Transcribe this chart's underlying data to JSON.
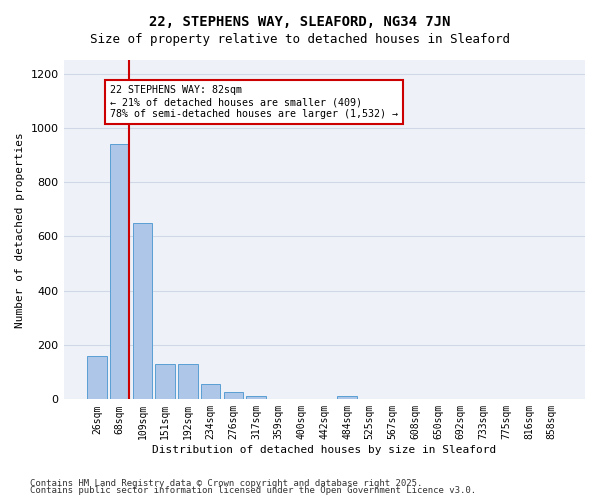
{
  "title_line1": "22, STEPHENS WAY, SLEAFORD, NG34 7JN",
  "title_line2": "Size of property relative to detached houses in Sleaford",
  "xlabel": "Distribution of detached houses by size in Sleaford",
  "ylabel": "Number of detached properties",
  "bar_labels": [
    "26sqm",
    "68sqm",
    "109sqm",
    "151sqm",
    "192sqm",
    "234sqm",
    "276sqm",
    "317sqm",
    "359sqm",
    "400sqm",
    "442sqm",
    "484sqm",
    "525sqm",
    "567sqm",
    "608sqm",
    "650sqm",
    "692sqm",
    "733sqm",
    "775sqm",
    "816sqm",
    "858sqm"
  ],
  "bar_values": [
    160,
    940,
    650,
    130,
    130,
    55,
    28,
    12,
    0,
    0,
    0,
    13,
    0,
    0,
    0,
    0,
    0,
    0,
    0,
    0,
    0
  ],
  "bar_color": "#aec6e8",
  "bar_edge_color": "#5a9fd4",
  "grid_color": "#d0d8e8",
  "background_color": "#eef2f8",
  "vline_x_offset": 1.42,
  "vline_color": "#cc0000",
  "annotation_text": "22 STEPHENS WAY: 82sqm\n← 21% of detached houses are smaller (409)\n78% of semi-detached houses are larger (1,532) →",
  "ylim": [
    0,
    1250
  ],
  "yticks": [
    0,
    200,
    400,
    600,
    800,
    1000,
    1200
  ],
  "footer_line1": "Contains HM Land Registry data © Crown copyright and database right 2025.",
  "footer_line2": "Contains public sector information licensed under the Open Government Licence v3.0."
}
